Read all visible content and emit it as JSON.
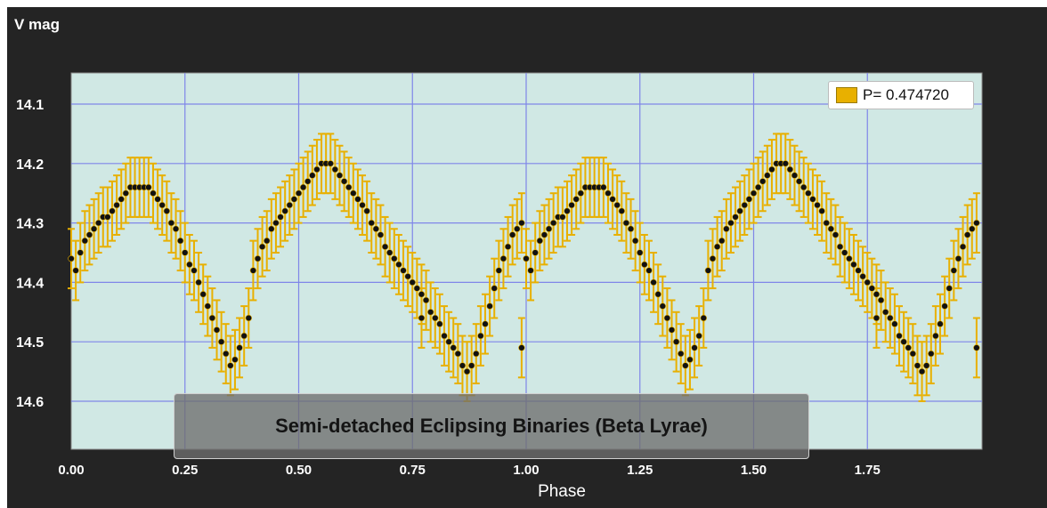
{
  "chart_data": {
    "type": "scatter",
    "ylabel": "V mag",
    "xlabel": "Phase",
    "caption": "Semi-detached Eclipsing Binaries (Beta Lyrae)",
    "legend_label": "P= 0.474720",
    "series_color": "#e8b000",
    "marker_color": "#111111",
    "plot_bg": "#d0e8e4",
    "grid_color": "#7f86e8",
    "xlim": [
      0.0,
      2.0
    ],
    "ylim": [
      14.05,
      14.68
    ],
    "y_inverted": true,
    "grid": true,
    "legend_position": "top-right",
    "x_ticks": [
      {
        "value": 0.0,
        "label": "0.00"
      },
      {
        "value": 0.25,
        "label": "0.25"
      },
      {
        "value": 0.5,
        "label": "0.50"
      },
      {
        "value": 0.75,
        "label": "0.75"
      },
      {
        "value": 1.0,
        "label": "1.00"
      },
      {
        "value": 1.25,
        "label": "1.25"
      },
      {
        "value": 1.5,
        "label": "1.50"
      },
      {
        "value": 1.75,
        "label": "1.75"
      }
    ],
    "y_ticks": [
      {
        "value": 14.1,
        "label": "14.1"
      },
      {
        "value": 14.2,
        "label": "14.2"
      },
      {
        "value": 14.3,
        "label": "14.3"
      },
      {
        "value": 14.4,
        "label": "14.4"
      },
      {
        "value": 14.5,
        "label": "14.5"
      },
      {
        "value": 14.6,
        "label": "14.6"
      }
    ],
    "x": [
      0.0,
      0.01,
      0.02,
      0.03,
      0.04,
      0.05,
      0.06,
      0.07,
      0.08,
      0.09,
      0.1,
      0.11,
      0.12,
      0.13,
      0.14,
      0.15,
      0.16,
      0.17,
      0.18,
      0.19,
      0.2,
      0.21,
      0.22,
      0.23,
      0.24,
      0.25,
      0.26,
      0.27,
      0.28,
      0.29,
      0.3,
      0.31,
      0.32,
      0.33,
      0.34,
      0.35,
      0.36,
      0.37,
      0.38,
      0.39,
      0.4,
      0.41,
      0.42,
      0.43,
      0.44,
      0.45,
      0.46,
      0.47,
      0.48,
      0.49,
      0.5,
      0.51,
      0.52,
      0.53,
      0.54,
      0.55,
      0.56,
      0.57,
      0.58,
      0.59,
      0.6,
      0.61,
      0.62,
      0.63,
      0.64,
      0.65,
      0.66,
      0.67,
      0.68,
      0.69,
      0.7,
      0.71,
      0.72,
      0.73,
      0.74,
      0.75,
      0.76,
      0.77,
      0.78,
      0.79,
      0.8,
      0.81,
      0.82,
      0.83,
      0.84,
      0.85,
      0.86,
      0.87,
      0.88,
      0.89,
      0.9,
      0.91,
      0.92,
      0.93,
      0.94,
      0.95,
      0.96,
      0.97,
      0.98,
      0.99,
      1.0,
      1.01,
      1.02,
      1.03,
      1.04,
      1.05,
      1.06,
      1.07,
      1.08,
      1.09,
      1.1,
      1.11,
      1.12,
      1.13,
      1.14,
      1.15,
      1.16,
      1.17,
      1.18,
      1.19,
      1.2,
      1.21,
      1.22,
      1.23,
      1.24,
      1.25,
      1.26,
      1.27,
      1.28,
      1.29,
      1.3,
      1.31,
      1.32,
      1.33,
      1.34,
      1.35,
      1.36,
      1.37,
      1.38,
      1.39,
      1.4,
      1.41,
      1.42,
      1.43,
      1.44,
      1.45,
      1.46,
      1.47,
      1.48,
      1.49,
      1.5,
      1.51,
      1.52,
      1.53,
      1.54,
      1.55,
      1.56,
      1.57,
      1.58,
      1.59,
      1.6,
      1.61,
      1.62,
      1.63,
      1.64,
      1.65,
      1.66,
      1.67,
      1.68,
      1.69,
      1.7,
      1.71,
      1.72,
      1.73,
      1.74,
      1.75,
      1.76,
      1.77,
      1.78,
      1.79,
      1.8,
      1.81,
      1.82,
      1.83,
      1.84,
      1.85,
      1.86,
      1.87,
      1.88,
      1.89,
      1.9,
      1.91,
      1.92,
      1.93,
      1.94,
      1.95,
      1.96,
      1.97,
      1.98,
      1.99
    ],
    "y": [
      14.36,
      14.38,
      14.35,
      14.33,
      14.32,
      14.31,
      14.3,
      14.29,
      14.29,
      14.28,
      14.27,
      14.26,
      14.25,
      14.24,
      14.24,
      14.24,
      14.24,
      14.24,
      14.25,
      14.26,
      14.27,
      14.28,
      14.3,
      14.31,
      14.33,
      14.35,
      14.37,
      14.38,
      14.4,
      14.42,
      14.44,
      14.46,
      14.48,
      14.5,
      14.52,
      14.54,
      14.53,
      14.51,
      14.49,
      14.46,
      14.38,
      14.36,
      14.34,
      14.33,
      14.31,
      14.3,
      14.29,
      14.28,
      14.27,
      14.26,
      14.25,
      14.24,
      14.23,
      14.22,
      14.21,
      14.2,
      14.2,
      14.2,
      14.21,
      14.22,
      14.23,
      14.24,
      14.25,
      14.26,
      14.27,
      14.28,
      14.3,
      14.31,
      14.32,
      14.34,
      14.35,
      14.36,
      14.37,
      14.38,
      14.39,
      14.4,
      14.41,
      14.42,
      14.43,
      14.45,
      14.46,
      14.47,
      14.49,
      14.5,
      14.51,
      14.52,
      14.54,
      14.55,
      14.54,
      14.52,
      14.49,
      14.47,
      14.44,
      14.41,
      14.38,
      14.36,
      14.34,
      14.32,
      14.31,
      14.3,
      14.36,
      14.38,
      14.35,
      14.33,
      14.32,
      14.31,
      14.3,
      14.29,
      14.29,
      14.28,
      14.27,
      14.26,
      14.25,
      14.24,
      14.24,
      14.24,
      14.24,
      14.24,
      14.25,
      14.26,
      14.27,
      14.28,
      14.3,
      14.31,
      14.33,
      14.35,
      14.37,
      14.38,
      14.4,
      14.42,
      14.44,
      14.46,
      14.48,
      14.5,
      14.52,
      14.54,
      14.53,
      14.51,
      14.49,
      14.46,
      14.38,
      14.36,
      14.34,
      14.33,
      14.31,
      14.3,
      14.29,
      14.28,
      14.27,
      14.26,
      14.25,
      14.24,
      14.23,
      14.22,
      14.21,
      14.2,
      14.2,
      14.2,
      14.21,
      14.22,
      14.23,
      14.24,
      14.25,
      14.26,
      14.27,
      14.28,
      14.3,
      14.31,
      14.32,
      14.34,
      14.35,
      14.36,
      14.37,
      14.38,
      14.39,
      14.4,
      14.41,
      14.42,
      14.43,
      14.45,
      14.46,
      14.47,
      14.49,
      14.5,
      14.51,
      14.52,
      14.54,
      14.55,
      14.54,
      14.52,
      14.49,
      14.47,
      14.44,
      14.41,
      14.38,
      14.36,
      14.34,
      14.32,
      14.31,
      14.3
    ],
    "yerr": 0.05,
    "outliers": [
      {
        "x": 0.77,
        "y": 14.46
      },
      {
        "x": 0.99,
        "y": 14.51
      },
      {
        "x": 1.77,
        "y": 14.46
      },
      {
        "x": 1.99,
        "y": 14.51
      }
    ]
  }
}
